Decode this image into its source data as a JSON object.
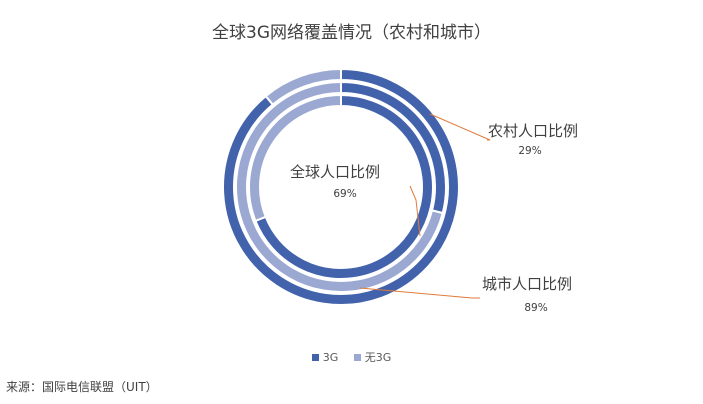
{
  "title": "全球3G网络覆盖情况（农村和城市）",
  "source": "来源：国际电信联盟（UIT）",
  "colors": {
    "3G": "#4263ac",
    "无3G": "#9aa8d2"
  },
  "legend": [
    {
      "name": "3G",
      "color": "#4263ac"
    },
    {
      "name": "无3G",
      "color": "#9aa8d2"
    }
  ],
  "chart_data": {
    "type": "pie",
    "subtype": "multi-ring-doughnut",
    "title": "全球3G网络覆盖情况（农村和城市）",
    "series_categories": [
      "3G",
      "无3G"
    ],
    "rings": [
      {
        "name": "城市人口比例",
        "label": "89%",
        "values": [
          89,
          11
        ]
      },
      {
        "name": "农村人口比例",
        "label": "29%",
        "values": [
          29,
          71
        ]
      },
      {
        "name": "全球人口比例",
        "label": "69%",
        "values": [
          69,
          31
        ]
      }
    ],
    "legend_position": "bottom"
  }
}
